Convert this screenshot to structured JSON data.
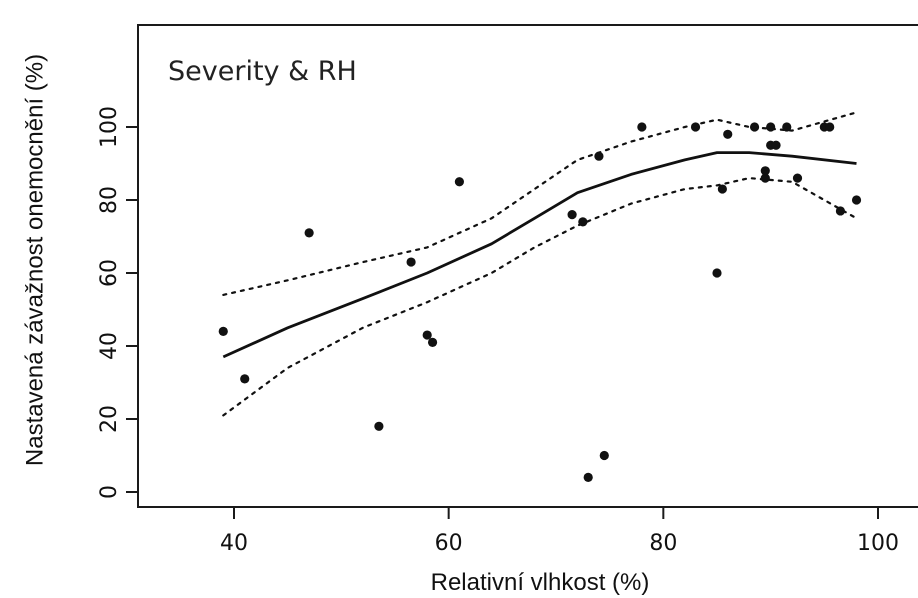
{
  "chart_data": {
    "type": "scatter",
    "title": "Severity & RH",
    "xlabel": "Relativní vlhkost (%)",
    "ylabel": "Nastavená závažnost onemocnění (%)",
    "xlim": [
      34,
      102
    ],
    "ylim": [
      -4,
      128
    ],
    "x_ticks": [
      40,
      60,
      80,
      100
    ],
    "y_ticks": [
      0,
      20,
      40,
      60,
      80,
      100
    ],
    "grid": false,
    "series": [
      {
        "kind": "points",
        "points": [
          [
            39.0,
            44
          ],
          [
            41.0,
            31
          ],
          [
            47.0,
            71
          ],
          [
            53.5,
            18
          ],
          [
            56.5,
            63
          ],
          [
            58.0,
            43
          ],
          [
            58.5,
            41
          ],
          [
            61.0,
            85
          ],
          [
            71.5,
            76
          ],
          [
            72.5,
            74
          ],
          [
            73.0,
            4
          ],
          [
            74.0,
            92
          ],
          [
            74.5,
            10
          ],
          [
            78.0,
            100
          ],
          [
            83.0,
            100
          ],
          [
            85.0,
            60
          ],
          [
            85.5,
            83
          ],
          [
            86.0,
            98
          ],
          [
            88.5,
            100
          ],
          [
            89.5,
            86
          ],
          [
            89.5,
            88
          ],
          [
            90.0,
            100
          ],
          [
            90.0,
            95
          ],
          [
            90.5,
            95
          ],
          [
            91.5,
            100
          ],
          [
            92.5,
            86
          ],
          [
            95.0,
            100
          ],
          [
            95.5,
            100
          ],
          [
            96.5,
            77
          ],
          [
            98.0,
            80
          ]
        ]
      },
      {
        "kind": "fit",
        "style": "solid",
        "x": [
          39,
          45,
          52,
          58,
          64,
          68,
          72,
          77,
          82,
          85,
          88,
          92,
          98
        ],
        "y": [
          37,
          45,
          53,
          60,
          68,
          75,
          82,
          87,
          91,
          93,
          93,
          92,
          90
        ]
      },
      {
        "kind": "upper-band",
        "style": "dotted",
        "x": [
          39,
          45,
          52,
          58,
          64,
          68,
          72,
          77,
          82,
          85,
          88,
          92,
          98
        ],
        "y": [
          54,
          58,
          63,
          67,
          75,
          83,
          91,
          96,
          100,
          102,
          100,
          99,
          104
        ]
      },
      {
        "kind": "lower-band",
        "style": "dotted",
        "x": [
          39,
          45,
          52,
          58,
          64,
          68,
          72,
          77,
          82,
          85,
          88,
          92,
          98
        ],
        "y": [
          21,
          34,
          45,
          52,
          60,
          67,
          73,
          79,
          83,
          84,
          86,
          85,
          75
        ]
      }
    ]
  }
}
